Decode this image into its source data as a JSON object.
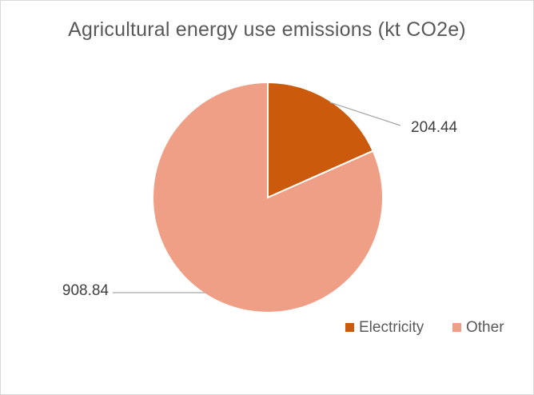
{
  "chart_data": {
    "type": "pie",
    "title": "Agricultural energy use emissions (kt CO2e)",
    "categories": [
      "Electricity",
      "Other"
    ],
    "values": [
      204.44,
      908.84
    ],
    "data_labels": [
      "204.44",
      "908.84"
    ],
    "colors": [
      "#cc5a0c",
      "#ef9f86"
    ],
    "start_angle_deg": 0,
    "direction": "clockwise",
    "legend": {
      "position": "bottom-right",
      "entries": [
        "Electricity",
        "Other"
      ]
    }
  }
}
